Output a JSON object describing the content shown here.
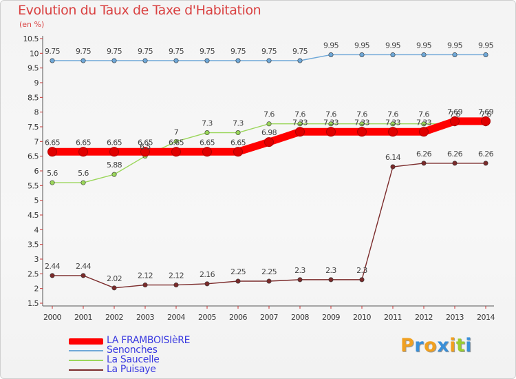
{
  "header": {
    "title": "Evolution du Taux de Taxe d'Habitation",
    "subtitle": "(en %)"
  },
  "chart_data": {
    "type": "line",
    "title": "Evolution du Taux de Taxe d'Habitation",
    "ylabel": "(en %)",
    "x": [
      "2000",
      "2001",
      "2002",
      "2003",
      "2004",
      "2005",
      "2006",
      "2007",
      "2008",
      "2009",
      "2010",
      "2011",
      "2012",
      "2013",
      "2014"
    ],
    "ylim": [
      1.5,
      10.5
    ],
    "yticks": [
      "1.5",
      "2",
      "2.5",
      "3",
      "3.5",
      "4",
      "4.5",
      "5",
      "5.5",
      "6",
      "6.5",
      "7",
      "7.5",
      "8",
      "8.5",
      "9",
      "9.5",
      "10",
      "10.5"
    ],
    "grid": false,
    "legend": "bottom-left",
    "series": [
      {
        "name": "LA FRAMBOISIèRE",
        "color": "#ff0000",
        "values": [
          6.65,
          6.65,
          6.65,
          6.65,
          6.65,
          6.65,
          6.65,
          6.98,
          7.33,
          7.33,
          7.33,
          7.33,
          7.33,
          7.69,
          7.69
        ],
        "labels": [
          "6.65",
          "6.65",
          "6.65",
          "6.65",
          "6.65",
          "6.65",
          "6.65",
          "6.98",
          "7.33",
          "7.33",
          "7.33",
          "7.33",
          "7.33",
          "7.69",
          "7.69"
        ]
      },
      {
        "name": "Senonches",
        "color": "#6fa8d8",
        "values": [
          9.75,
          9.75,
          9.75,
          9.75,
          9.75,
          9.75,
          9.75,
          9.75,
          9.75,
          9.95,
          9.95,
          9.95,
          9.95,
          9.95,
          9.95
        ],
        "labels": [
          "9.75",
          "9.75",
          "9.75",
          "9.75",
          "9.75",
          "9.75",
          "9.75",
          "9.75",
          "9.75",
          "9.95",
          "9.95",
          "9.95",
          "9.95",
          "9.95",
          "9.95"
        ]
      },
      {
        "name": "La Saucelle",
        "color": "#9ad65a",
        "values": [
          5.6,
          5.6,
          5.88,
          6.5,
          7,
          7.3,
          7.3,
          7.6,
          7.6,
          7.6,
          7.6,
          7.6,
          7.6,
          7.6,
          7.6
        ],
        "labels": [
          "5.6",
          "5.6",
          "5.88",
          "6.5",
          "7",
          "7.3",
          "7.3",
          "7.6",
          "7.6",
          "7.6",
          "7.6",
          "7.6",
          "7.6",
          "7.6",
          "7.6"
        ]
      },
      {
        "name": "La Puisaye",
        "color": "#7b2b2b",
        "values": [
          2.44,
          2.44,
          2.02,
          2.12,
          2.12,
          2.16,
          2.25,
          2.25,
          2.3,
          2.3,
          2.3,
          6.14,
          6.26,
          6.26,
          6.26
        ],
        "labels": [
          "2.44",
          "2.44",
          "2.02",
          "2.12",
          "2.12",
          "2.16",
          "2.25",
          "2.25",
          "2.3",
          "2.3",
          "2.3",
          "6.14",
          "6.26",
          "6.26",
          "6.26"
        ]
      }
    ]
  },
  "logo": {
    "letters": [
      "P",
      "r",
      "o",
      "x",
      "i",
      "t",
      "i"
    ],
    "colors": [
      "#f0a020",
      "#3a8fd8",
      "#f0a020",
      "#3a8fd8",
      "#f0a020",
      "#9acd32",
      "#3a8fd8"
    ]
  }
}
